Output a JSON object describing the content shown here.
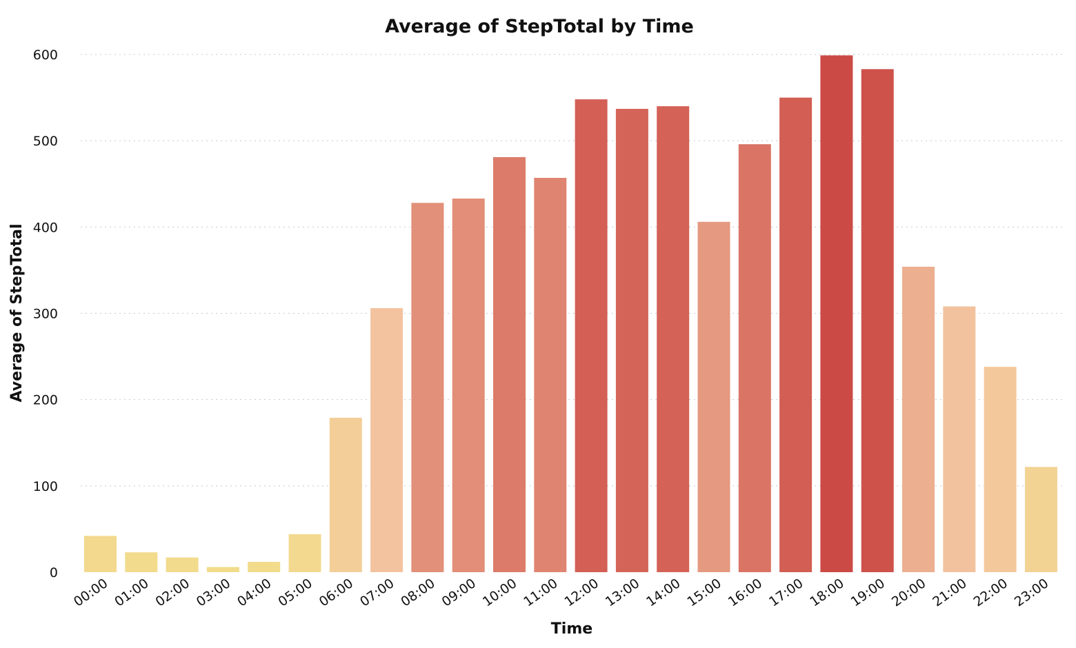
{
  "chart_data": {
    "type": "bar",
    "title": "Average of StepTotal by Time",
    "xlabel": "Time",
    "ylabel": "Average of StepTotal",
    "ylim": [
      0,
      600
    ],
    "yticks": [
      0,
      100,
      200,
      300,
      400,
      500,
      600
    ],
    "grid": true,
    "categories": [
      "00:00",
      "01:00",
      "02:00",
      "03:00",
      "04:00",
      "05:00",
      "06:00",
      "07:00",
      "08:00",
      "09:00",
      "10:00",
      "11:00",
      "12:00",
      "13:00",
      "14:00",
      "15:00",
      "16:00",
      "17:00",
      "18:00",
      "19:00",
      "20:00",
      "21:00",
      "22:00",
      "23:00"
    ],
    "values": [
      42,
      23,
      17,
      6,
      12,
      44,
      179,
      306,
      428,
      433,
      481,
      457,
      548,
      537,
      540,
      406,
      496,
      550,
      599,
      583,
      354,
      308,
      238,
      122
    ],
    "color_scale": {
      "low": "#f2dc8c",
      "mid": "#f3c4a0",
      "high": "#cc4a45"
    }
  }
}
